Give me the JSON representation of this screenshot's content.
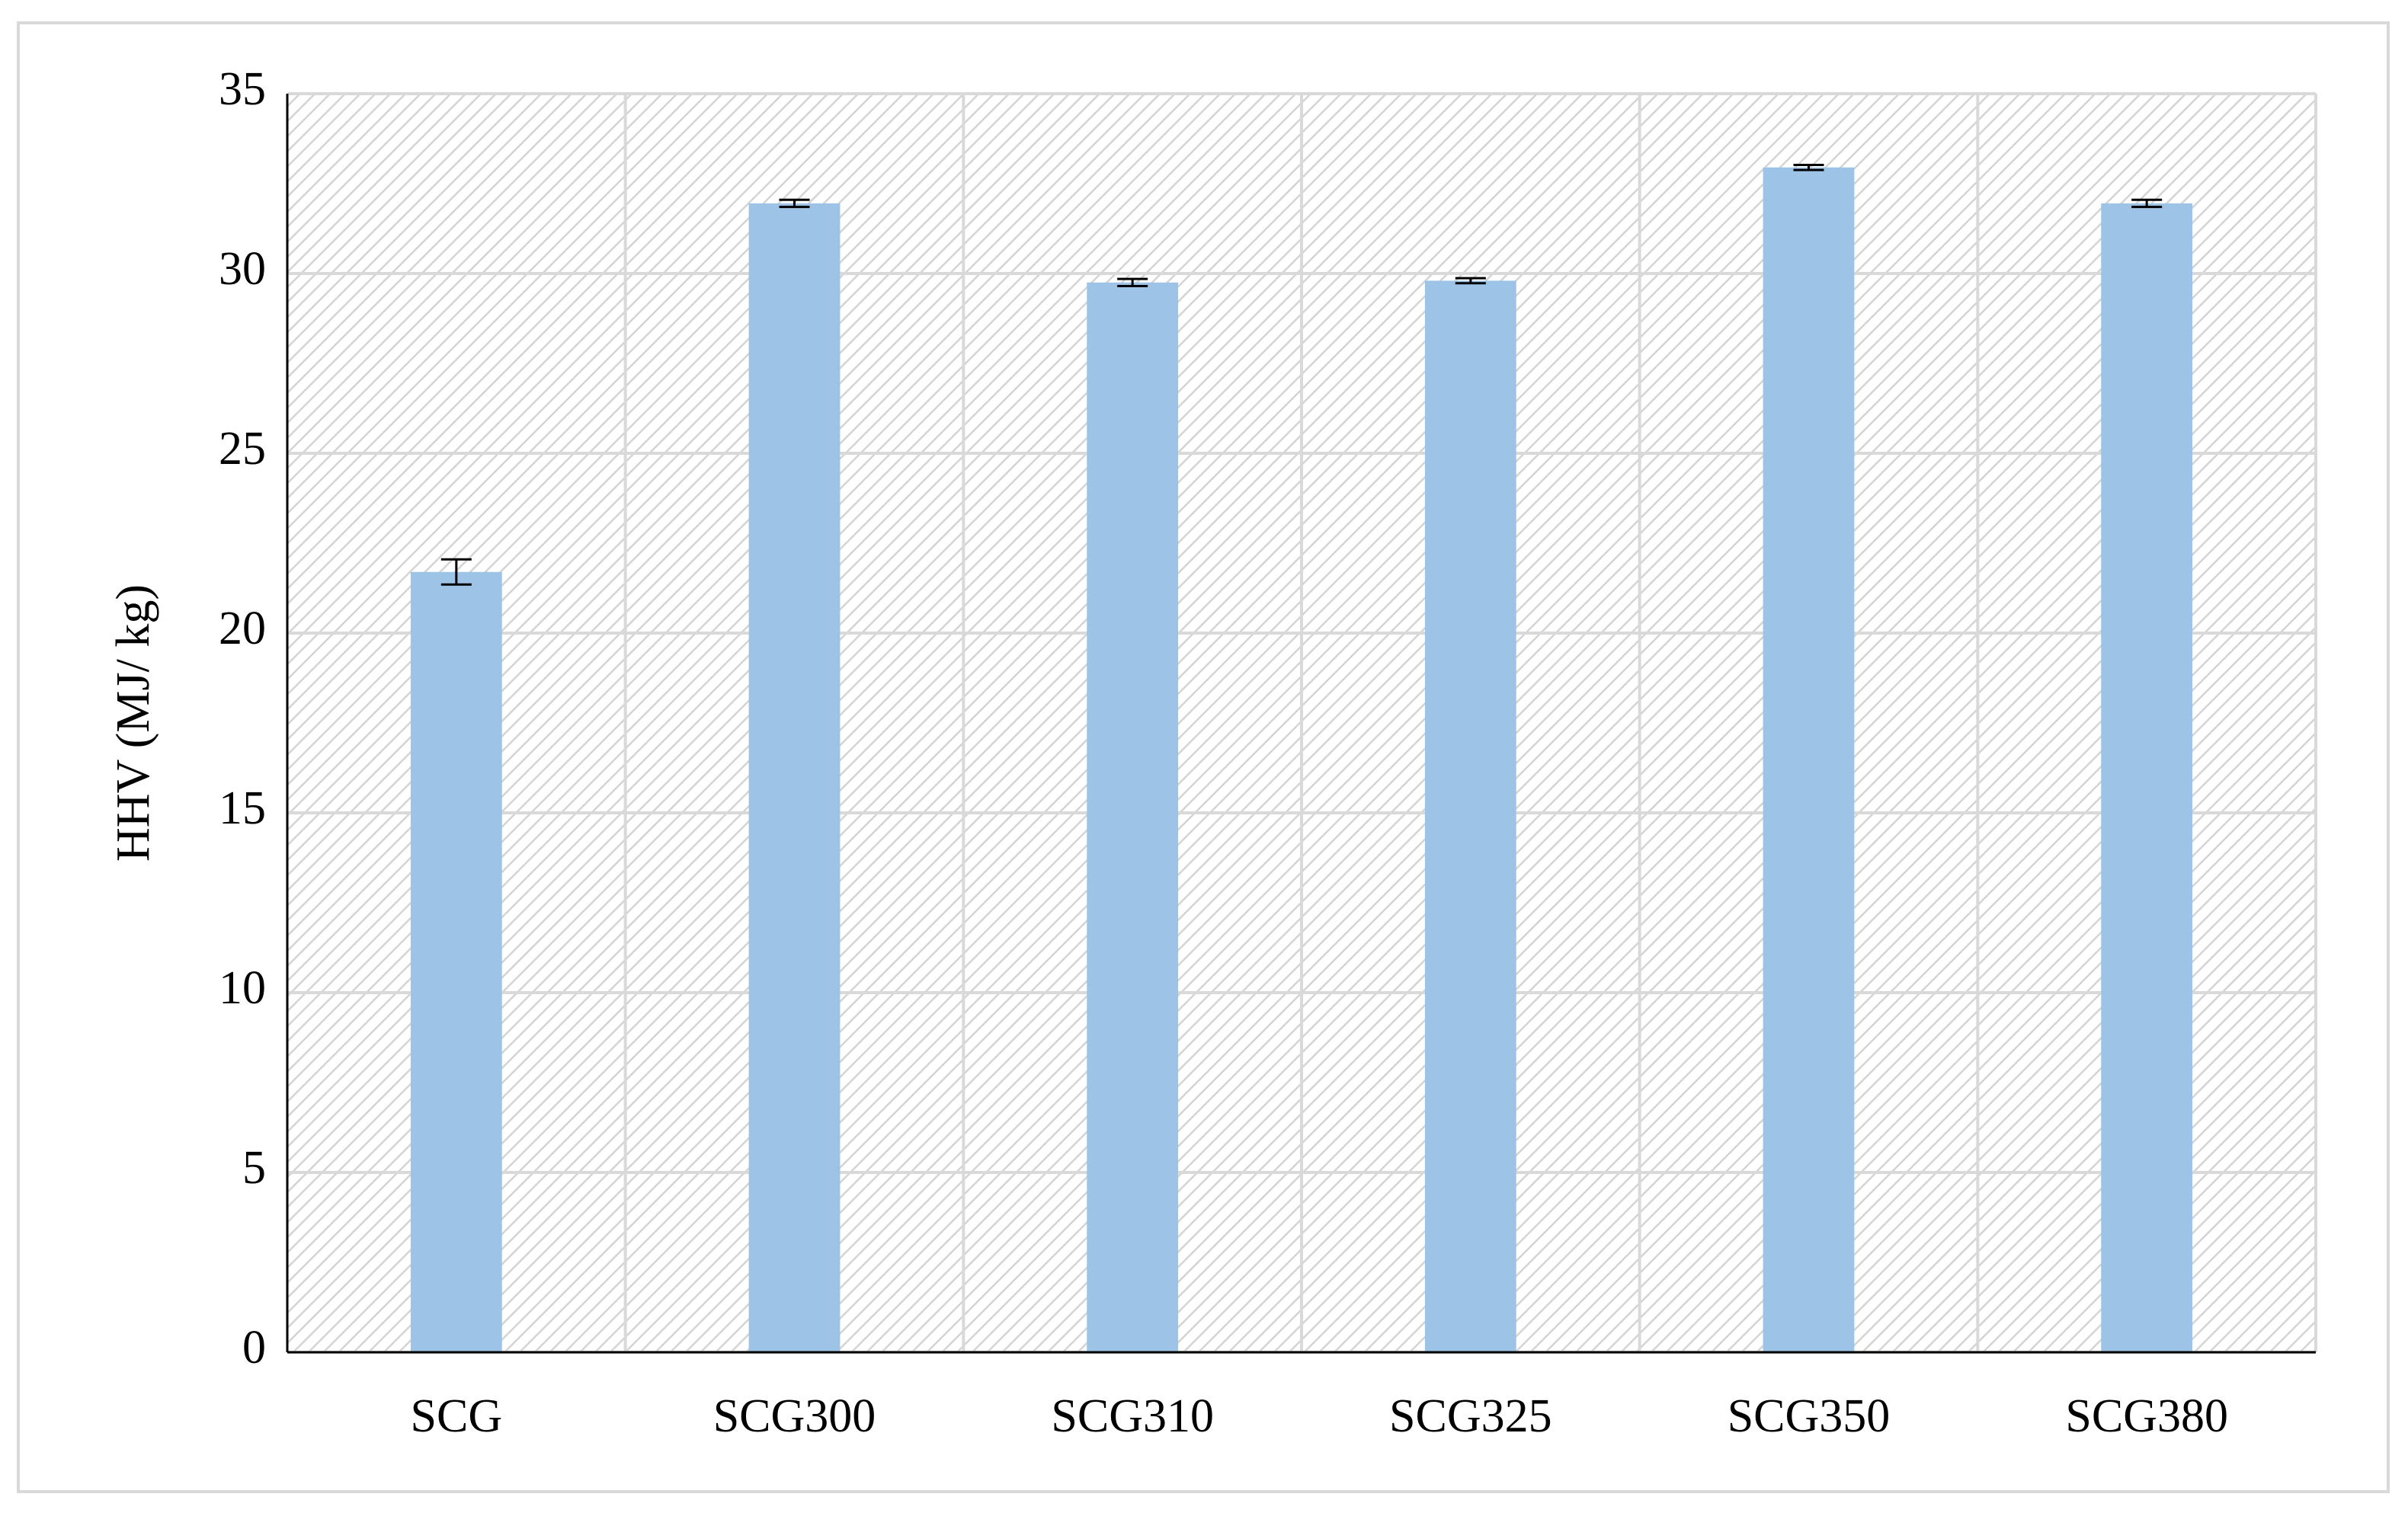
{
  "chart_data": {
    "type": "bar",
    "y_label": "HHV (MJ/ kg)",
    "categories": [
      "SCG",
      "SCG300",
      "SCG310",
      "SCG325",
      "SCG350",
      "SCG380"
    ],
    "values": [
      21.7,
      31.95,
      29.75,
      29.8,
      32.95,
      31.95
    ],
    "errors": [
      0.35,
      0.1,
      0.1,
      0.07,
      0.07,
      0.1
    ],
    "color": "#9dc3e6",
    "ylim": [
      0,
      35
    ],
    "yticks": [
      0,
      5,
      10,
      15,
      20,
      25,
      30,
      35
    ],
    "grid": true
  }
}
